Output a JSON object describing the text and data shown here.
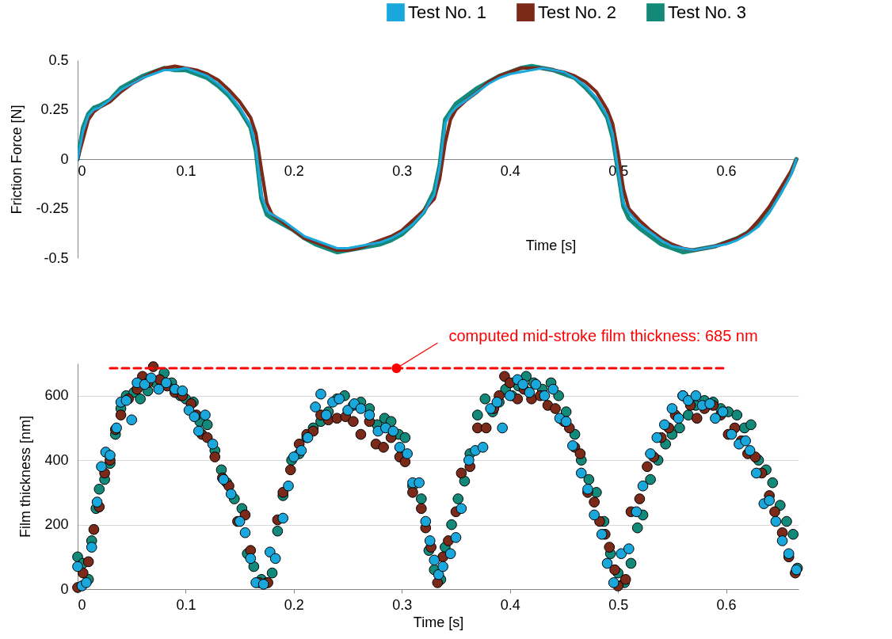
{
  "chart_data": [
    {
      "type": "line",
      "xlabel": "Time [s]",
      "ylabel": "Friction Force [N]",
      "xlim": [
        0,
        0.667
      ],
      "xticks": [
        0,
        0.1,
        0.2,
        0.3,
        0.4,
        0.5,
        0.6
      ],
      "ylim": [
        -0.5,
        0.5
      ],
      "yticks": [
        -0.5,
        -0.25,
        0,
        0.25,
        0.5
      ],
      "grid": false,
      "legend": "top right",
      "x": [
        0,
        0.005,
        0.01,
        0.015,
        0.02,
        0.03,
        0.04,
        0.05,
        0.06,
        0.07,
        0.08,
        0.09,
        0.1,
        0.11,
        0.12,
        0.13,
        0.14,
        0.15,
        0.16,
        0.165,
        0.17,
        0.175,
        0.18,
        0.19,
        0.2,
        0.21,
        0.22,
        0.23,
        0.24,
        0.25,
        0.26,
        0.27,
        0.28,
        0.29,
        0.3,
        0.31,
        0.32,
        0.33,
        0.335,
        0.34,
        0.345,
        0.35,
        0.36,
        0.37,
        0.38,
        0.39,
        0.4,
        0.41,
        0.42,
        0.43,
        0.44,
        0.45,
        0.46,
        0.47,
        0.48,
        0.49,
        0.495,
        0.5,
        0.505,
        0.51,
        0.52,
        0.53,
        0.54,
        0.55,
        0.56,
        0.57,
        0.58,
        0.59,
        0.6,
        0.61,
        0.62,
        0.63,
        0.64,
        0.65,
        0.66,
        0.665
      ],
      "series": [
        {
          "name": "Test No. 1",
          "color": "#1aa7dc",
          "values": [
            0,
            0.14,
            0.22,
            0.25,
            0.26,
            0.3,
            0.35,
            0.38,
            0.41,
            0.43,
            0.45,
            0.45,
            0.46,
            0.44,
            0.42,
            0.38,
            0.33,
            0.26,
            0.17,
            0.06,
            -0.18,
            -0.26,
            -0.28,
            -0.31,
            -0.35,
            -0.39,
            -0.41,
            -0.43,
            -0.45,
            -0.45,
            -0.44,
            -0.43,
            -0.42,
            -0.4,
            -0.37,
            -0.33,
            -0.27,
            -0.18,
            -0.04,
            0.18,
            0.23,
            0.26,
            0.3,
            0.34,
            0.38,
            0.41,
            0.43,
            0.44,
            0.45,
            0.46,
            0.45,
            0.44,
            0.41,
            0.37,
            0.31,
            0.22,
            0.13,
            -0.05,
            -0.22,
            -0.27,
            -0.33,
            -0.37,
            -0.41,
            -0.44,
            -0.45,
            -0.46,
            -0.45,
            -0.44,
            -0.43,
            -0.41,
            -0.38,
            -0.34,
            -0.27,
            -0.18,
            -0.08,
            0
          ]
        },
        {
          "name": "Test No. 2",
          "color": "#7b2a1a",
          "values": [
            0,
            0.1,
            0.2,
            0.24,
            0.26,
            0.29,
            0.34,
            0.38,
            0.41,
            0.44,
            0.46,
            0.47,
            0.46,
            0.45,
            0.43,
            0.4,
            0.35,
            0.29,
            0.21,
            0.13,
            -0.05,
            -0.22,
            -0.28,
            -0.32,
            -0.36,
            -0.4,
            -0.42,
            -0.44,
            -0.46,
            -0.46,
            -0.45,
            -0.43,
            -0.41,
            -0.39,
            -0.36,
            -0.31,
            -0.26,
            -0.2,
            -0.1,
            0.08,
            0.2,
            0.25,
            0.3,
            0.34,
            0.39,
            0.42,
            0.44,
            0.46,
            0.46,
            0.46,
            0.45,
            0.44,
            0.42,
            0.39,
            0.34,
            0.25,
            0.18,
            0.03,
            -0.15,
            -0.25,
            -0.31,
            -0.36,
            -0.4,
            -0.43,
            -0.45,
            -0.46,
            -0.45,
            -0.44,
            -0.42,
            -0.4,
            -0.37,
            -0.31,
            -0.24,
            -0.15,
            -0.06,
            0
          ]
        },
        {
          "name": "Test No. 3",
          "color": "#13897a",
          "values": [
            0,
            0.16,
            0.23,
            0.26,
            0.27,
            0.3,
            0.36,
            0.39,
            0.42,
            0.44,
            0.46,
            0.45,
            0.45,
            0.43,
            0.41,
            0.37,
            0.32,
            0.25,
            0.16,
            0.04,
            -0.2,
            -0.28,
            -0.3,
            -0.33,
            -0.36,
            -0.4,
            -0.43,
            -0.45,
            -0.47,
            -0.46,
            -0.45,
            -0.44,
            -0.43,
            -0.41,
            -0.38,
            -0.33,
            -0.27,
            -0.16,
            -0.03,
            0.2,
            0.24,
            0.28,
            0.32,
            0.36,
            0.39,
            0.42,
            0.44,
            0.46,
            0.47,
            0.46,
            0.45,
            0.43,
            0.41,
            0.36,
            0.3,
            0.21,
            0.11,
            -0.06,
            -0.24,
            -0.3,
            -0.35,
            -0.39,
            -0.43,
            -0.45,
            -0.47,
            -0.46,
            -0.45,
            -0.44,
            -0.42,
            -0.4,
            -0.37,
            -0.33,
            -0.26,
            -0.17,
            -0.07,
            0
          ]
        }
      ]
    },
    {
      "type": "scatter",
      "xlabel": "Time [s]",
      "ylabel": "Film thickness [nm]",
      "xlim": [
        0,
        0.667
      ],
      "xticks": [
        0,
        0.1,
        0.2,
        0.3,
        0.4,
        0.5,
        0.6
      ],
      "ylim": [
        0,
        700
      ],
      "yticks": [
        0,
        200,
        400,
        600
      ],
      "grid": "y",
      "marker": "circle",
      "annotations": [
        {
          "text": "computed mid-stroke film thickness: 685 nm",
          "x": 0.295,
          "y": 685
        }
      ],
      "series": [
        {
          "name": "Test No. 1",
          "color": "#1aa7dc",
          "x": [
            0,
            0.004,
            0.008,
            0.013,
            0.018,
            0.022,
            0.026,
            0.03,
            0.036,
            0.04,
            0.045,
            0.05,
            0.055,
            0.062,
            0.068,
            0.075,
            0.082,
            0.09,
            0.097,
            0.103,
            0.108,
            0.112,
            0.118,
            0.125,
            0.135,
            0.142,
            0.15,
            0.155,
            0.16,
            0.165,
            0.172,
            0.178,
            0.183,
            0.19,
            0.195,
            0.2,
            0.207,
            0.213,
            0.22,
            0.225,
            0.23,
            0.236,
            0.242,
            0.25,
            0.256,
            0.262,
            0.27,
            0.278,
            0.285,
            0.292,
            0.298,
            0.305,
            0.31,
            0.316,
            0.322,
            0.326,
            0.33,
            0.334,
            0.338,
            0.345,
            0.35,
            0.355,
            0.362,
            0.368,
            0.375,
            0.382,
            0.388,
            0.393,
            0.4,
            0.407,
            0.412,
            0.418,
            0.424,
            0.432,
            0.44,
            0.446,
            0.452,
            0.458,
            0.466,
            0.472,
            0.478,
            0.485,
            0.49,
            0.496,
            0.503,
            0.51,
            0.517,
            0.523,
            0.53,
            0.536,
            0.543,
            0.55,
            0.556,
            0.56,
            0.565,
            0.572,
            0.578,
            0.585,
            0.59,
            0.597,
            0.605,
            0.612,
            0.618,
            0.622,
            0.628,
            0.635,
            0.64,
            0.646,
            0.652,
            0.658,
            0.665
          ],
          "values": [
            70,
            10,
            20,
            130,
            270,
            380,
            425,
            415,
            500,
            580,
            585,
            525,
            640,
            635,
            655,
            620,
            640,
            620,
            615,
            555,
            535,
            490,
            540,
            450,
            340,
            295,
            210,
            175,
            95,
            20,
            15,
            115,
            95,
            220,
            320,
            410,
            430,
            470,
            565,
            605,
            540,
            580,
            590,
            555,
            575,
            560,
            540,
            490,
            500,
            490,
            440,
            420,
            330,
            330,
            210,
            150,
            90,
            45,
            70,
            110,
            160,
            250,
            400,
            430,
            440,
            560,
            580,
            500,
            600,
            650,
            635,
            610,
            635,
            600,
            620,
            530,
            520,
            445,
            360,
            310,
            230,
            170,
            80,
            20,
            110,
            125,
            240,
            320,
            420,
            470,
            510,
            560,
            530,
            600,
            585,
            600,
            570,
            575,
            530,
            550,
            480,
            450,
            460,
            430,
            360,
            265,
            275,
            210,
            150,
            110,
            60
          ]
        },
        {
          "name": "Test No. 2",
          "color": "#7b2a1a",
          "x": [
            0,
            0.005,
            0.01,
            0.015,
            0.02,
            0.025,
            0.03,
            0.035,
            0.04,
            0.047,
            0.055,
            0.06,
            0.065,
            0.07,
            0.076,
            0.083,
            0.09,
            0.097,
            0.105,
            0.11,
            0.115,
            0.12,
            0.127,
            0.134,
            0.14,
            0.148,
            0.155,
            0.16,
            0.168,
            0.176,
            0.185,
            0.19,
            0.197,
            0.205,
            0.212,
            0.218,
            0.225,
            0.232,
            0.24,
            0.248,
            0.255,
            0.262,
            0.27,
            0.276,
            0.283,
            0.29,
            0.298,
            0.303,
            0.31,
            0.318,
            0.322,
            0.327,
            0.333,
            0.338,
            0.343,
            0.35,
            0.355,
            0.363,
            0.37,
            0.378,
            0.385,
            0.39,
            0.395,
            0.4,
            0.407,
            0.413,
            0.42,
            0.428,
            0.435,
            0.442,
            0.45,
            0.455,
            0.46,
            0.465,
            0.472,
            0.478,
            0.483,
            0.488,
            0.492,
            0.497,
            0.5,
            0.507,
            0.512,
            0.52,
            0.527,
            0.533,
            0.54,
            0.547,
            0.553,
            0.56,
            0.567,
            0.573,
            0.58,
            0.588,
            0.595,
            0.602,
            0.608,
            0.614,
            0.62,
            0.627,
            0.633,
            0.64,
            0.645,
            0.652,
            0.658,
            0.664
          ],
          "values": [
            5,
            50,
            85,
            185,
            255,
            360,
            400,
            495,
            540,
            590,
            620,
            660,
            640,
            690,
            650,
            630,
            610,
            600,
            575,
            540,
            480,
            470,
            410,
            345,
            320,
            210,
            230,
            120,
            20,
            20,
            215,
            300,
            370,
            450,
            480,
            490,
            540,
            525,
            530,
            535,
            520,
            480,
            520,
            450,
            440,
            470,
            410,
            395,
            300,
            250,
            190,
            130,
            20,
            100,
            150,
            240,
            360,
            380,
            500,
            500,
            560,
            600,
            660,
            640,
            590,
            620,
            590,
            600,
            570,
            560,
            520,
            500,
            440,
            420,
            300,
            270,
            210,
            170,
            130,
            60,
            10,
            30,
            240,
            280,
            380,
            410,
            470,
            500,
            540,
            600,
            570,
            530,
            560,
            570,
            540,
            480,
            500,
            460,
            420,
            410,
            360,
            290,
            240,
            175,
            100,
            50
          ]
        },
        {
          "name": "Test No. 3",
          "color": "#13897a",
          "x": [
            0,
            0.005,
            0.01,
            0.013,
            0.017,
            0.02,
            0.025,
            0.03,
            0.035,
            0.04,
            0.045,
            0.052,
            0.058,
            0.065,
            0.072,
            0.08,
            0.087,
            0.095,
            0.1,
            0.107,
            0.113,
            0.12,
            0.127,
            0.133,
            0.138,
            0.145,
            0.152,
            0.157,
            0.163,
            0.17,
            0.175,
            0.18,
            0.185,
            0.19,
            0.198,
            0.205,
            0.212,
            0.218,
            0.225,
            0.232,
            0.24,
            0.247,
            0.255,
            0.262,
            0.27,
            0.277,
            0.284,
            0.29,
            0.297,
            0.303,
            0.31,
            0.318,
            0.325,
            0.33,
            0.336,
            0.34,
            0.346,
            0.352,
            0.358,
            0.363,
            0.37,
            0.377,
            0.384,
            0.39,
            0.396,
            0.402,
            0.408,
            0.415,
            0.422,
            0.43,
            0.438,
            0.445,
            0.452,
            0.46,
            0.466,
            0.473,
            0.48,
            0.487,
            0.493,
            0.5,
            0.506,
            0.512,
            0.518,
            0.523,
            0.53,
            0.537,
            0.544,
            0.55,
            0.557,
            0.565,
            0.572,
            0.58,
            0.588,
            0.595,
            0.602,
            0.61,
            0.617,
            0.623,
            0.63,
            0.637,
            0.643,
            0.65,
            0.656,
            0.662,
            0.666
          ],
          "values": [
            100,
            80,
            30,
            150,
            250,
            310,
            340,
            390,
            480,
            560,
            600,
            610,
            590,
            615,
            640,
            670,
            640,
            600,
            590,
            580,
            520,
            510,
            430,
            370,
            330,
            280,
            250,
            110,
            70,
            30,
            20,
            50,
            180,
            290,
            400,
            420,
            470,
            500,
            520,
            550,
            590,
            600,
            570,
            580,
            560,
            510,
            530,
            520,
            480,
            470,
            320,
            280,
            120,
            60,
            30,
            130,
            200,
            280,
            335,
            420,
            540,
            590,
            550,
            580,
            620,
            600,
            630,
            660,
            640,
            620,
            640,
            600,
            550,
            480,
            400,
            340,
            300,
            210,
            110,
            50,
            20,
            80,
            190,
            230,
            340,
            400,
            450,
            480,
            500,
            540,
            570,
            585,
            580,
            560,
            550,
            540,
            500,
            510,
            400,
            370,
            330,
            260,
            210,
            170,
            65
          ]
        },
        {
          "type": "line",
          "color": "#ff0000",
          "line_style": "dashed",
          "marker": "none",
          "x": [
            0.03,
            0.6
          ],
          "values": [
            685,
            685
          ]
        }
      ]
    }
  ]
}
